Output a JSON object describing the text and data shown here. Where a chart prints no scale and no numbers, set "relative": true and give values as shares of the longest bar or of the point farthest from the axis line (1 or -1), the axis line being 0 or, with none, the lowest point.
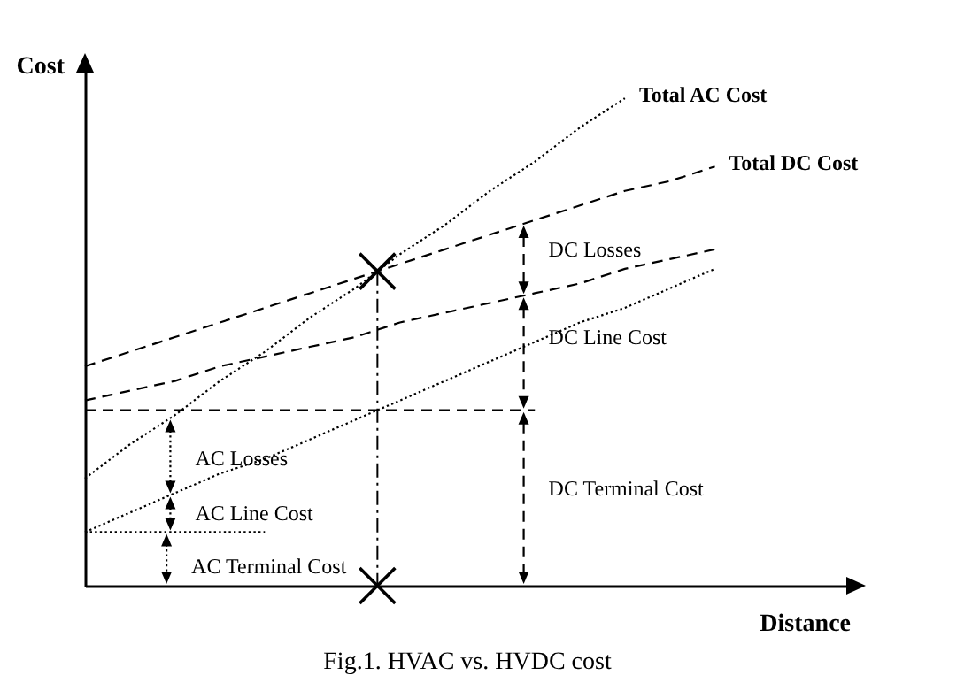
{
  "chart_data": {
    "type": "line",
    "relative": true,
    "xlabel": "Distance",
    "ylabel": "Cost",
    "categories": [
      null,
      null,
      null,
      null,
      null,
      null,
      null,
      null,
      null,
      null,
      null,
      null,
      null,
      null,
      null,
      null,
      null,
      null
    ],
    "series": [
      {
        "name": "Total AC Cost",
        "color": "#000000",
        "line_style": "dotted",
        "values": [
          0.22,
          0.29,
          0.35,
          0.42,
          0.48,
          0.55,
          0.61,
          0.68,
          0.74,
          0.81,
          0.87,
          0.94,
          1.0,
          null,
          null,
          null,
          null,
          null
        ]
      },
      {
        "name": "Total DC Cost",
        "color": "#000000",
        "line_style": "dashed",
        "values": [
          0.45,
          0.48,
          0.51,
          0.54,
          0.57,
          0.6,
          0.63,
          0.66,
          0.69,
          0.72,
          0.75,
          0.78,
          0.81,
          0.83,
          0.86,
          null,
          null,
          null
        ]
      },
      {
        "color": "#000000",
        "line_style": "dashed",
        "values": [
          0.38,
          0.4,
          0.42,
          0.45,
          0.47,
          0.49,
          0.51,
          0.54,
          0.56,
          0.58,
          0.6,
          0.62,
          0.65,
          0.67,
          0.69,
          null,
          null,
          null
        ]
      },
      {
        "color": "#000000",
        "line_style": "dotted",
        "values": [
          0.11,
          0.15,
          0.19,
          0.23,
          0.26,
          0.3,
          0.34,
          0.38,
          0.42,
          0.46,
          0.5,
          0.54,
          0.57,
          0.61,
          0.65,
          null,
          null,
          null
        ]
      },
      {
        "color": "#000000",
        "line_style": "dashed",
        "values": [
          0.36,
          0.36,
          0.36,
          0.36,
          0.36,
          0.36,
          0.36,
          0.36,
          0.36,
          0.36,
          0.36,
          null,
          null,
          null,
          null,
          null,
          null,
          null
        ]
      },
      {
        "color": "#000000",
        "line_style": "dotted",
        "values": [
          0.11,
          0.11,
          0.11,
          0.11,
          0.11,
          null,
          null,
          null,
          null,
          null,
          null,
          null,
          null,
          null,
          null,
          null,
          null,
          null
        ]
      }
    ],
    "annotations": [
      "AC Losses",
      "AC Line Cost",
      "AC Terminal Cost",
      "DC Losses",
      "DC Line Cost",
      "DC Terminal Cost",
      "Fig.1. HVAC vs. HVDC cost"
    ]
  }
}
